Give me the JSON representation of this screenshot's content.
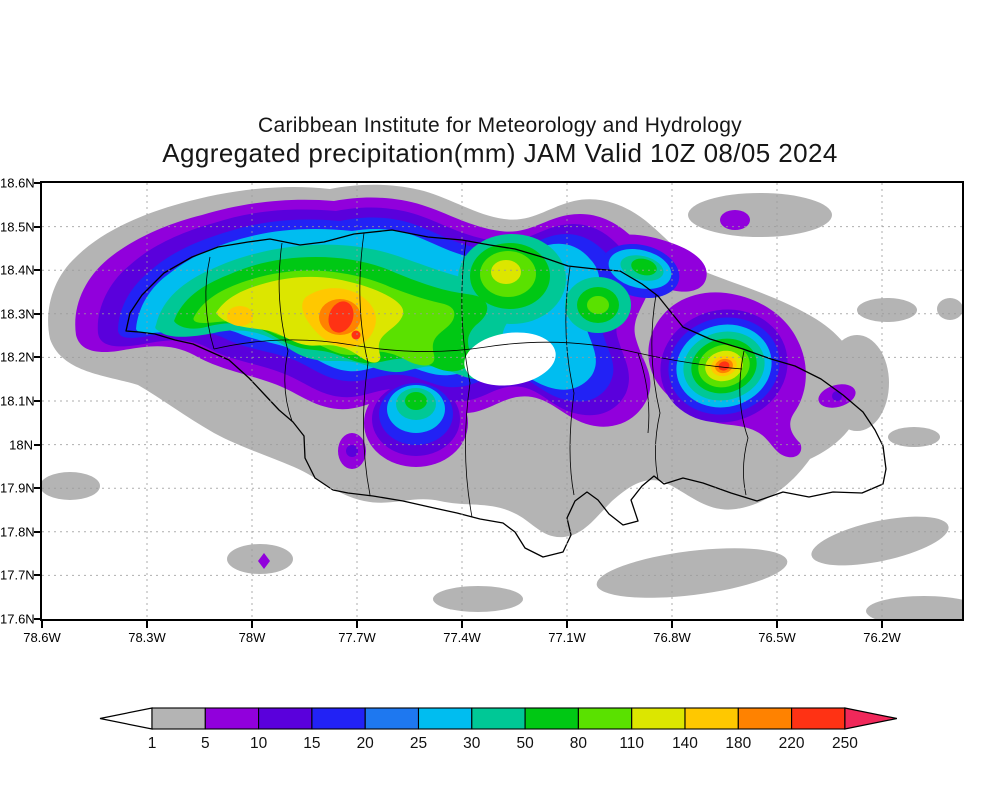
{
  "header": {
    "line1": "Caribbean Institute for Meteorology and Hydrology",
    "line2": "Aggregated precipitation(mm) JAM Valid 10Z 08/05 2024"
  },
  "axes": {
    "lat_ticks": [
      "18.6N",
      "18.5N",
      "18.4N",
      "18.3N",
      "18.2N",
      "18.1N",
      "18N",
      "17.9N",
      "17.8N",
      "17.7N",
      "17.6N"
    ],
    "lon_ticks": [
      "78.6W",
      "78.3W",
      "78W",
      "77.7W",
      "77.4W",
      "77.1W",
      "76.8W",
      "76.5W",
      "76.2W"
    ]
  },
  "colorbar": {
    "labels": [
      "1",
      "5",
      "10",
      "15",
      "20",
      "25",
      "30",
      "50",
      "80",
      "110",
      "140",
      "180",
      "220",
      "250"
    ],
    "colors": [
      "#b4b4b4",
      "#9100dc",
      "#5a00dc",
      "#2222f5",
      "#1e78f0",
      "#00bdf0",
      "#00c896",
      "#00c814",
      "#5ae100",
      "#dce600",
      "#ffc800",
      "#ff8200",
      "#ff3214"
    ],
    "under_color": "#ffffff",
    "over_color": "#f0285a",
    "outline_color": "#000000"
  },
  "chart_data": {
    "type": "heatmap",
    "subtype": "filled-contour precipitation analysis map",
    "title": "Aggregated precipitation(mm) JAM Valid 10Z 08/05 2024",
    "institution": "Caribbean Institute for Meteorology and Hydrology",
    "region": "Jamaica (JAM) and surrounding waters",
    "valid_time": "10Z 08/05 2024",
    "units": "mm",
    "x_axis": {
      "orientation": "longitude (degrees West)",
      "ticks": [
        "78.6W",
        "78.3W",
        "78W",
        "77.7W",
        "77.4W",
        "77.1W",
        "76.8W",
        "76.5W",
        "76.2W"
      ],
      "range": [
        "78.6W",
        "76.1W"
      ]
    },
    "y_axis": {
      "orientation": "latitude (degrees North)",
      "ticks": [
        "18.6N",
        "18.5N",
        "18.4N",
        "18.3N",
        "18.2N",
        "18.1N",
        "18N",
        "17.9N",
        "17.8N",
        "17.7N",
        "17.6N"
      ],
      "range": [
        "17.6N",
        "18.6N"
      ]
    },
    "grid": "dotted gray graticule at each labeled tick",
    "legend_position": "horizontal colorbar at bottom with under/over arrows",
    "contour_levels_mm": [
      1,
      5,
      10,
      15,
      20,
      25,
      30,
      50,
      80,
      110,
      140,
      180,
      220,
      250
    ],
    "level_colors": [
      "#b4b4b4",
      "#9100dc",
      "#5a00dc",
      "#2222f5",
      "#1e78f0",
      "#00bdf0",
      "#00c896",
      "#00c814",
      "#5ae100",
      "#dce600",
      "#ffc800",
      "#ff8200",
      "#ff3214"
    ],
    "under_arrow": "below 1 mm (white)",
    "over_arrow": "above 250 mm (crimson)",
    "maxima": [
      {
        "location": "west-central Jamaica near 77.75W 18.3N",
        "value_mm": "greater than 250"
      },
      {
        "location": "eastern Jamaica near 76.7W 18.17N",
        "value_mm": "greater than 250"
      }
    ],
    "pattern_notes": [
      "Broad 30-140 mm rainfall shield over northwestern and central Jamaica",
      "Concentric bullseye of 50-250+ mm over eastern Jamaica",
      "Purple 5-15 mm fringe surrounding the island rainfall shield",
      "Scattered 1-5 mm (gray) patches over offshore waters north, south and east of the island",
      "Rain-free (white) pocket in the interior near 77.25W 18.2N"
    ],
    "coastline": "Jamaica coastline and parish boundaries drawn in black"
  }
}
